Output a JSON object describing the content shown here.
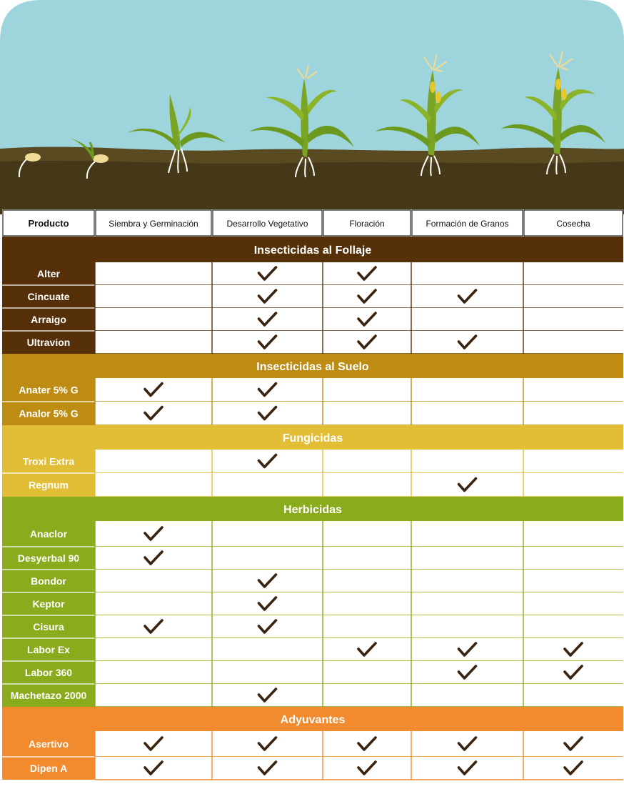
{
  "colors": {
    "sky": "#9ed4dc",
    "soil": "#4a3b1b",
    "check": "#3a2410"
  },
  "header": {
    "product_label": "Producto",
    "stages": [
      "Siembra y Germinación",
      "Desarrollo Vegetativo",
      "Floración",
      "Formación de Granos",
      "Cosecha"
    ]
  },
  "sections": [
    {
      "title": "Insecticidas al Follaje",
      "color": "#553008",
      "line": "#553008",
      "products": [
        {
          "name": "Alter",
          "checks": [
            false,
            true,
            true,
            false,
            false
          ]
        },
        {
          "name": "Cincuate",
          "checks": [
            false,
            true,
            true,
            true,
            false
          ]
        },
        {
          "name": "Arraigo",
          "checks": [
            false,
            true,
            true,
            false,
            false
          ]
        },
        {
          "name": "Ultravion",
          "checks": [
            false,
            true,
            true,
            true,
            false
          ]
        }
      ]
    },
    {
      "title": "Insecticidas al Suelo",
      "color": "#be8c13",
      "line": "#be8c13",
      "products": [
        {
          "name": "Anater 5% G",
          "checks": [
            true,
            true,
            false,
            false,
            false
          ]
        },
        {
          "name": "Analor 5% G",
          "checks": [
            true,
            true,
            false,
            false,
            false
          ]
        }
      ]
    },
    {
      "title": "Fungicidas",
      "color": "#e2bd36",
      "line": "#e2bd36",
      "products": [
        {
          "name": "Troxi Extra",
          "checks": [
            false,
            true,
            false,
            false,
            false
          ]
        },
        {
          "name": "Regnum",
          "checks": [
            false,
            false,
            false,
            true,
            false
          ]
        }
      ]
    },
    {
      "title": "Herbicidas",
      "color": "#8aab1b",
      "line": "#8aab1b",
      "products": [
        {
          "name": "Anaclor",
          "checks": [
            true,
            false,
            false,
            false,
            false
          ]
        },
        {
          "name": "Desyerbal 90",
          "checks": [
            true,
            false,
            false,
            false,
            false
          ]
        },
        {
          "name": "Bondor",
          "checks": [
            false,
            true,
            false,
            false,
            false
          ]
        },
        {
          "name": "Keptor",
          "checks": [
            false,
            true,
            false,
            false,
            false
          ]
        },
        {
          "name": "Cisura",
          "checks": [
            true,
            true,
            false,
            false,
            false
          ]
        },
        {
          "name": "Labor Ex",
          "checks": [
            false,
            false,
            true,
            true,
            true
          ]
        },
        {
          "name": "Labor 360",
          "checks": [
            false,
            false,
            false,
            true,
            true
          ]
        },
        {
          "name": "Machetazo 2000",
          "checks": [
            false,
            true,
            false,
            false,
            false
          ]
        }
      ]
    },
    {
      "title": "Adyuvantes",
      "color": "#f28a2e",
      "line": "#f28a2e",
      "products": [
        {
          "name": "Asertivo",
          "checks": [
            true,
            true,
            true,
            true,
            true
          ]
        },
        {
          "name": "Dipen A",
          "checks": [
            true,
            true,
            true,
            true,
            true
          ]
        }
      ]
    }
  ]
}
